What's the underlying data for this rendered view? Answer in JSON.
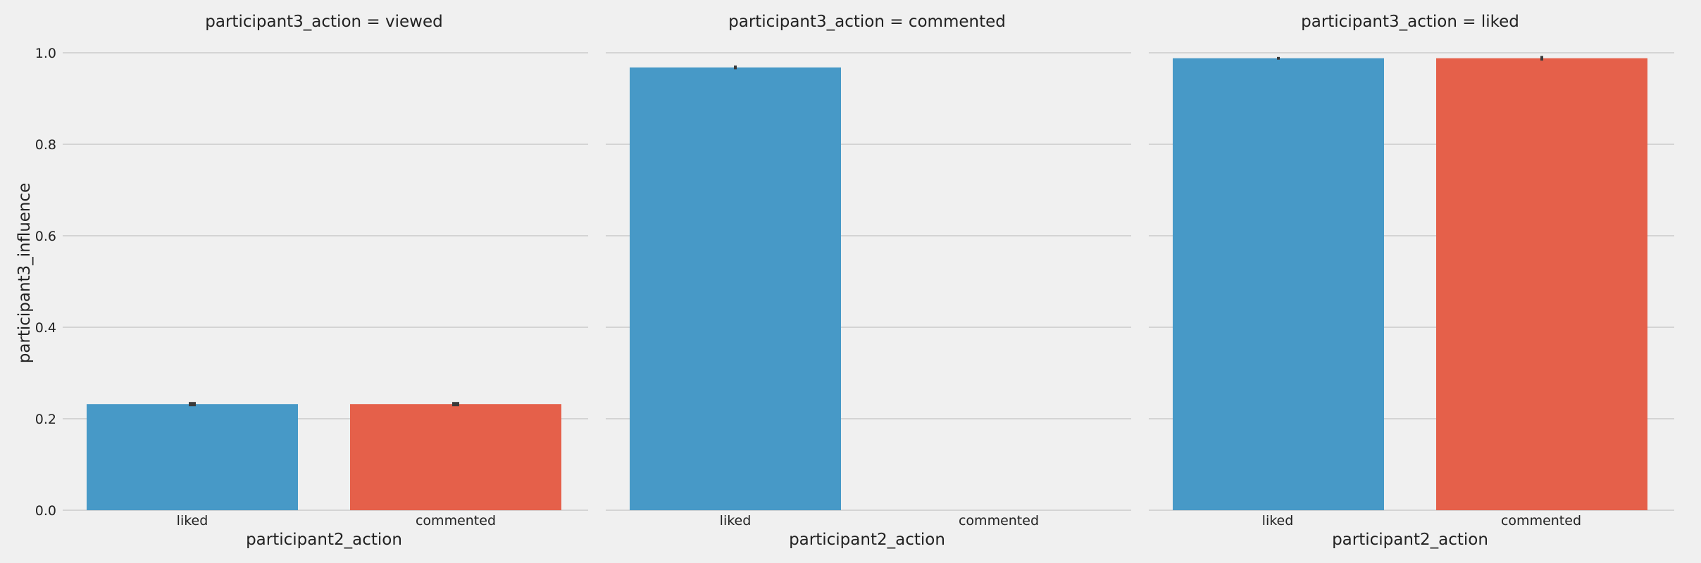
{
  "chart_data": {
    "type": "bar",
    "ylabel": "participant3_influence",
    "ylim": [
      0,
      1.0
    ],
    "yticks": [
      "0.0",
      "0.2",
      "0.4",
      "0.6",
      "0.8",
      "1.0"
    ],
    "grid": true,
    "colors": {
      "liked": "#4799c7",
      "commented": "#e5604a",
      "errorbar": "#3a3a3a",
      "background": "#f0f0f0",
      "grid": "#cbcbcb"
    },
    "panels": [
      {
        "title": "participant3_action = viewed",
        "xlabel": "participant2_action",
        "categories": [
          "liked",
          "commented"
        ],
        "values": [
          0.232,
          0.232
        ],
        "errors": [
          0.0,
          0.0
        ]
      },
      {
        "title": "participant3_action = commented",
        "xlabel": "participant2_action",
        "categories": [
          "liked",
          "commented"
        ],
        "values": [
          0.968,
          null
        ],
        "errors": [
          0.004,
          0.0
        ]
      },
      {
        "title": "participant3_action = liked",
        "xlabel": "participant2_action",
        "categories": [
          "liked",
          "commented"
        ],
        "values": [
          0.988,
          0.988
        ],
        "errors": [
          0.003,
          0.005
        ]
      }
    ]
  }
}
